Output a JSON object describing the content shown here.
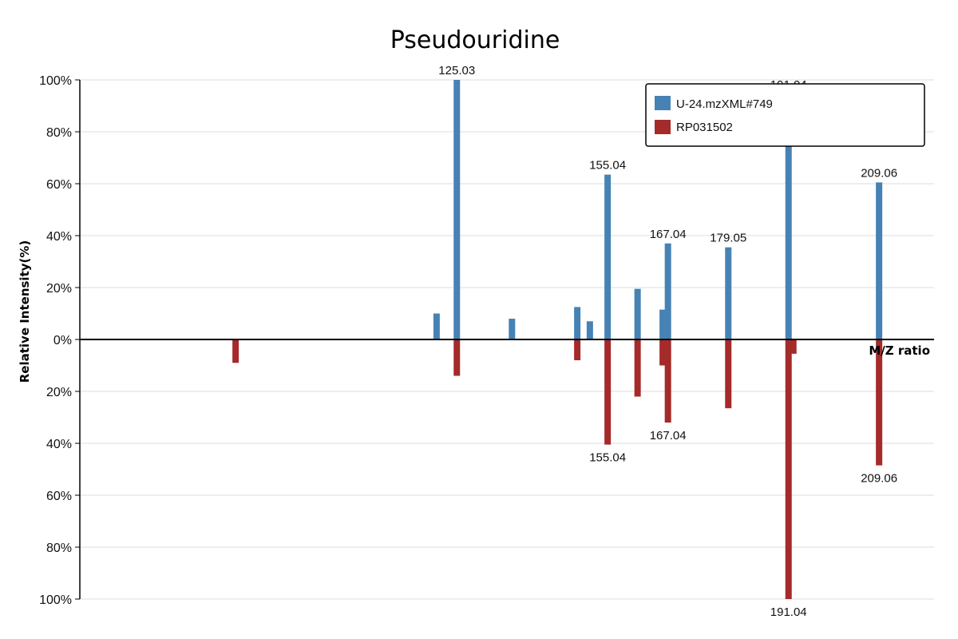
{
  "chart_data": {
    "type": "bar",
    "title": "Pseudouridine",
    "xlabel": "M/Z ratio",
    "ylabel": "Relative Intensity(%)",
    "yticks_top": [
      "100%",
      "80%",
      "60%",
      "40%",
      "20%",
      "0%"
    ],
    "yticks_bottom": [
      "20%",
      "40%",
      "60%",
      "80%",
      "100%"
    ],
    "ylim": [
      -100,
      100
    ],
    "xlim": [
      50,
      220
    ],
    "grid": true,
    "legend_position": "top-right",
    "series": [
      {
        "name": "U-24.mzXML#749",
        "color": "#4682b4",
        "direction": "up",
        "peaks": [
          {
            "mz": 121.0,
            "intensity": 10
          },
          {
            "mz": 125.03,
            "intensity": 100,
            "label": "125.03"
          },
          {
            "mz": 136.0,
            "intensity": 8
          },
          {
            "mz": 149.0,
            "intensity": 12.5
          },
          {
            "mz": 151.5,
            "intensity": 7
          },
          {
            "mz": 155.04,
            "intensity": 63.5,
            "label": "155.04"
          },
          {
            "mz": 161.0,
            "intensity": 19.5
          },
          {
            "mz": 166.0,
            "intensity": 11.5
          },
          {
            "mz": 167.04,
            "intensity": 37,
            "label": "167.04"
          },
          {
            "mz": 179.05,
            "intensity": 35.5,
            "label": "179.05"
          },
          {
            "mz": 191.04,
            "intensity": 94.5,
            "label": "191.04"
          },
          {
            "mz": 209.06,
            "intensity": 60.5,
            "label": "209.06"
          }
        ]
      },
      {
        "name": "RP031502",
        "color": "#a52a2a",
        "direction": "down",
        "peaks": [
          {
            "mz": 81.0,
            "intensity": 9
          },
          {
            "mz": 125.03,
            "intensity": 14
          },
          {
            "mz": 149.0,
            "intensity": 8
          },
          {
            "mz": 155.04,
            "intensity": 40.5,
            "label": "155.04"
          },
          {
            "mz": 161.0,
            "intensity": 22
          },
          {
            "mz": 166.0,
            "intensity": 10
          },
          {
            "mz": 167.04,
            "intensity": 32,
            "label": "167.04"
          },
          {
            "mz": 179.05,
            "intensity": 26.5
          },
          {
            "mz": 191.04,
            "intensity": 100,
            "label": "191.04"
          },
          {
            "mz": 192.0,
            "intensity": 5.5
          },
          {
            "mz": 209.06,
            "intensity": 48.5,
            "label": "209.06"
          }
        ]
      }
    ]
  }
}
